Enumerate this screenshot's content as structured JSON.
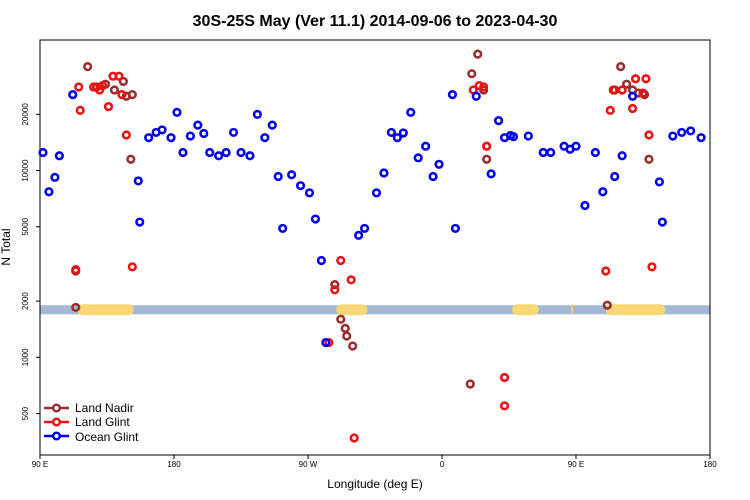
{
  "chart_data": {
    "type": "scatter",
    "title": "30S-25S May (Ver 11.1)   2014-09-06 to 2023-04-30",
    "xlabel": "Longitude (deg E)",
    "ylabel": "N Total",
    "xlim": [
      90,
      540
    ],
    "ylim": [
      300,
      50000
    ],
    "yscale": "log",
    "x_ticks": [
      {
        "value": 90,
        "label": "90 E"
      },
      {
        "value": 180,
        "label": "180"
      },
      {
        "value": 270,
        "label": "90 W"
      },
      {
        "value": 360,
        "label": "0"
      },
      {
        "value": 450,
        "label": "90 E"
      },
      {
        "value": 540,
        "label": "180"
      }
    ],
    "y_ticks": [
      {
        "value": 500,
        "label": "500"
      },
      {
        "value": 1000,
        "label": "1000"
      },
      {
        "value": 2000,
        "label": "2000"
      },
      {
        "value": 5000,
        "label": "5000"
      },
      {
        "value": 10000,
        "label": "10000"
      },
      {
        "value": 20000,
        "label": "20000"
      }
    ],
    "band": {
      "y_low": 1700,
      "y_high": 1900,
      "color": "#a2b8d4",
      "land_color": "#f8d774",
      "land_segments": [
        [
          115,
          153
        ],
        [
          289,
          310
        ],
        [
          407,
          425
        ],
        [
          447,
          448
        ],
        [
          470,
          510
        ]
      ]
    },
    "legend_position": "bottom-left",
    "series": [
      {
        "name": "Land Nadir",
        "color": "#9b2d2d",
        "points": [
          [
            114,
            1850
          ],
          [
            114,
            2900
          ],
          [
            122,
            36000
          ],
          [
            128,
            28000
          ],
          [
            134,
            29000
          ],
          [
            140,
            27000
          ],
          [
            146,
            30000
          ],
          [
            148,
            25000
          ],
          [
            152,
            25500
          ],
          [
            151,
            11500
          ],
          [
            288,
            2450
          ],
          [
            292,
            1600
          ],
          [
            295,
            1430
          ],
          [
            296,
            1300
          ],
          [
            300,
            1150
          ],
          [
            379,
            720
          ],
          [
            380,
            33000
          ],
          [
            384,
            42000
          ],
          [
            388,
            27000
          ],
          [
            390,
            11500
          ],
          [
            390,
            13500
          ],
          [
            471,
            1900
          ],
          [
            476,
            27000
          ],
          [
            480,
            36000
          ],
          [
            484,
            29000
          ],
          [
            488,
            27000
          ],
          [
            492,
            26000
          ],
          [
            496,
            25500
          ],
          [
            499,
            11500
          ]
        ]
      },
      {
        "name": "Land Glint",
        "color": "#ee1111",
        "points": [
          [
            114,
            2950
          ],
          [
            116,
            28000
          ],
          [
            117,
            21000
          ],
          [
            126,
            28000
          ],
          [
            130,
            27000
          ],
          [
            132,
            28500
          ],
          [
            136,
            22000
          ],
          [
            139,
            32000
          ],
          [
            143,
            32000
          ],
          [
            145,
            25500
          ],
          [
            148,
            15500
          ],
          [
            152,
            3050
          ],
          [
            284,
            1200
          ],
          [
            288,
            2300
          ],
          [
            292,
            3300
          ],
          [
            299,
            2600
          ],
          [
            301,
            370
          ],
          [
            381,
            27000
          ],
          [
            385,
            28500
          ],
          [
            388,
            28000
          ],
          [
            390,
            13500
          ],
          [
            402,
            780
          ],
          [
            402,
            550
          ],
          [
            470,
            2900
          ],
          [
            473,
            21000
          ],
          [
            475,
            27000
          ],
          [
            481,
            27000
          ],
          [
            488,
            21500
          ],
          [
            490,
            31000
          ],
          [
            495,
            26000
          ],
          [
            497,
            31000
          ],
          [
            499,
            15500
          ],
          [
            501,
            3050
          ]
        ]
      },
      {
        "name": "Ocean Glint",
        "color": "#0000ee",
        "points": [
          [
            92,
            12500
          ],
          [
            96,
            7700
          ],
          [
            100,
            9200
          ],
          [
            103,
            12000
          ],
          [
            112,
            25500
          ],
          [
            156,
            8800
          ],
          [
            157,
            5300
          ],
          [
            163,
            15000
          ],
          [
            168,
            16000
          ],
          [
            172,
            16500
          ],
          [
            178,
            15000
          ],
          [
            182,
            20500
          ],
          [
            186,
            12500
          ],
          [
            191,
            15300
          ],
          [
            196,
            17500
          ],
          [
            200,
            15800
          ],
          [
            204,
            12500
          ],
          [
            210,
            12000
          ],
          [
            215,
            12500
          ],
          [
            220,
            16000
          ],
          [
            225,
            12500
          ],
          [
            231,
            12000
          ],
          [
            236,
            20000
          ],
          [
            241,
            15000
          ],
          [
            246,
            17500
          ],
          [
            250,
            9300
          ],
          [
            253,
            4900
          ],
          [
            259,
            9500
          ],
          [
            265,
            8300
          ],
          [
            271,
            7600
          ],
          [
            275,
            5500
          ],
          [
            279,
            3300
          ],
          [
            282,
            1200
          ],
          [
            304,
            4500
          ],
          [
            308,
            4900
          ],
          [
            316,
            7600
          ],
          [
            321,
            9700
          ],
          [
            326,
            16000
          ],
          [
            330,
            15000
          ],
          [
            334,
            15900
          ],
          [
            339,
            20500
          ],
          [
            344,
            11700
          ],
          [
            349,
            13500
          ],
          [
            354,
            9300
          ],
          [
            358,
            10800
          ],
          [
            367,
            25500
          ],
          [
            369,
            4900
          ],
          [
            383,
            25000
          ],
          [
            393,
            9600
          ],
          [
            398,
            18500
          ],
          [
            402,
            15000
          ],
          [
            406,
            15400
          ],
          [
            408,
            15200
          ],
          [
            418,
            15300
          ],
          [
            428,
            12500
          ],
          [
            433,
            12500
          ],
          [
            442,
            13500
          ],
          [
            446,
            13000
          ],
          [
            450,
            13500
          ],
          [
            456,
            6500
          ],
          [
            463,
            12500
          ],
          [
            468,
            7700
          ],
          [
            476,
            9300
          ],
          [
            481,
            12000
          ],
          [
            488,
            25000
          ],
          [
            506,
            8700
          ],
          [
            508,
            5300
          ],
          [
            515,
            15300
          ],
          [
            521,
            16000
          ],
          [
            527,
            16300
          ],
          [
            534,
            15000
          ]
        ]
      }
    ]
  }
}
